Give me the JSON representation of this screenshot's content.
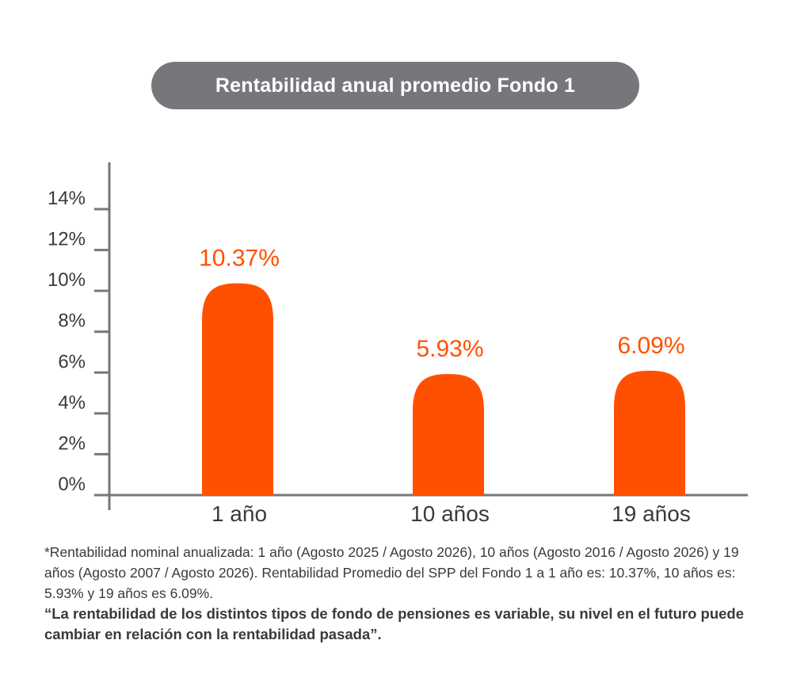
{
  "chart_data": {
    "type": "bar",
    "title": "Rentabilidad anual promedio Fondo 1",
    "categories": [
      "1 año",
      "10 años",
      "19 años"
    ],
    "values": [
      10.37,
      5.93,
      6.09
    ],
    "value_labels": [
      "10.37%",
      "5.93%",
      "6.09%"
    ],
    "y_ticks": [
      0,
      2,
      4,
      6,
      8,
      10,
      12,
      14
    ],
    "y_tick_labels": [
      "0%",
      "2%",
      "4%",
      "6%",
      "8%",
      "10%",
      "12%",
      "14%"
    ],
    "ylim": [
      0,
      14
    ],
    "xlabel": "",
    "ylabel": "",
    "grid": false,
    "bar_color": "#ff5000",
    "label_color": "#ff5000",
    "axis_color": "#76777a",
    "title_bg": "#76777a"
  },
  "footnote": {
    "text": "*Rentabilidad nominal anualizada: 1 año (Agosto 2025 / Agosto 2026), 10 años (Agosto 2016 / Agosto 2026) y 19 años (Agosto 2007 / Agosto 2026). Rentabilidad Promedio del SPP del Fondo 1 a 1 año es: 10.37%, 10 años es: 5.93% y 19 años es 6.09%.",
    "bold_text": "“La rentabilidad de los distintos tipos de fondo de pensiones es variable, su nivel en el futuro puede cambiar en relación con la rentabilidad pasada”."
  }
}
